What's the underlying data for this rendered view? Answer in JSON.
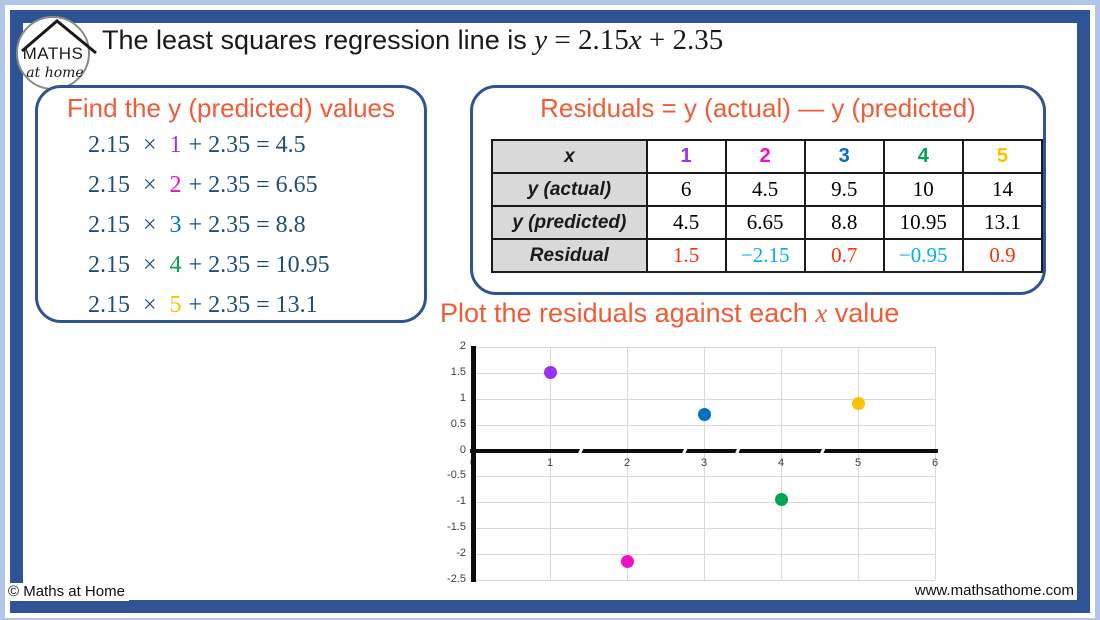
{
  "page": {
    "frame_outer_color": "#b4c6e7",
    "frame_border_color": "#2f5496",
    "heading_color": "#f15b35",
    "equation_color": "#1f4e79"
  },
  "logo": {
    "maths": "MATHS",
    "at_home": "at home"
  },
  "header": {
    "title_prefix": "The least squares regression line is",
    "equation": {
      "y": "y",
      "equals": " = ",
      "slope": "2.15",
      "x": "x",
      "plus": " + ",
      "intercept": "2.35"
    }
  },
  "left_box": {
    "title": "Find the y (predicted) values",
    "equations": [
      {
        "coef": "2.15",
        "times": "×",
        "x": "1",
        "x_color": "#9b30f5",
        "rest": "+ 2.35 = 4.5"
      },
      {
        "coef": "2.15",
        "times": "×",
        "x": "2",
        "x_color": "#f010c8",
        "rest": "+ 2.35 = 6.65"
      },
      {
        "coef": "2.15",
        "times": "×",
        "x": "3",
        "x_color": "#0070c0",
        "rest": "+ 2.35 = 8.8"
      },
      {
        "coef": "2.15",
        "times": "×",
        "x": "4",
        "x_color": "#00a651",
        "rest": "+ 2.35 = 10.95"
      },
      {
        "coef": "2.15",
        "times": "×",
        "x": "5",
        "x_color": "#ffc000",
        "rest": "+ 2.35 = 13.1"
      }
    ]
  },
  "right_box": {
    "title": "Residuals = y (actual) — y (predicted)",
    "table": {
      "rows": [
        {
          "label": "x",
          "cells": [
            {
              "text": "1",
              "color": "#9b30f5"
            },
            {
              "text": "2",
              "color": "#f010c8"
            },
            {
              "text": "3",
              "color": "#0070c0"
            },
            {
              "text": "4",
              "color": "#00a651"
            },
            {
              "text": "5",
              "color": "#ffc000"
            }
          ]
        },
        {
          "label": "y (actual)",
          "cells": [
            {
              "text": "6"
            },
            {
              "text": "4.5"
            },
            {
              "text": "9.5"
            },
            {
              "text": "10"
            },
            {
              "text": "14"
            }
          ]
        },
        {
          "label": "y (predicted)",
          "cells": [
            {
              "text": "4.5"
            },
            {
              "text": "6.65"
            },
            {
              "text": "8.8"
            },
            {
              "text": "10.95"
            },
            {
              "text": "13.1"
            }
          ]
        },
        {
          "label": "Residual",
          "cells": [
            {
              "text": "1.5",
              "color": "#ff3000"
            },
            {
              "text": "−2.15",
              "color": "#00b0f0"
            },
            {
              "text": "0.7",
              "color": "#ff3000"
            },
            {
              "text": "−0.95",
              "color": "#00b0f0"
            },
            {
              "text": "0.9",
              "color": "#ff3000"
            }
          ]
        }
      ]
    }
  },
  "chart_data": {
    "type": "scatter",
    "title_prefix": "Plot the residuals against each ",
    "title_italic_x": "x",
    "title_suffix": " value",
    "x": [
      1,
      2,
      3,
      4,
      5
    ],
    "y": [
      1.5,
      -2.15,
      0.7,
      -0.95,
      0.9
    ],
    "point_colors": [
      "#9b30f5",
      "#f010c8",
      "#0070c0",
      "#00a651",
      "#ffc000"
    ],
    "xlim": [
      0,
      6
    ],
    "ylim": [
      -2.5,
      2
    ],
    "x_tick_labels": [
      "0",
      "1",
      "2",
      "3",
      "4",
      "5",
      "6"
    ],
    "y_tick_labels": [
      "2",
      "1.5",
      "1",
      "0.5",
      "0",
      "-0.5",
      "-1",
      "-1.5",
      "-2",
      "-2.5"
    ],
    "grid": true,
    "legend": false,
    "axis_stroke_breaks_x": [
      1.38,
      2.73,
      3.42,
      4.52
    ]
  },
  "footer": {
    "left": "© Maths at Home",
    "right": "www.mathsathome.com"
  }
}
